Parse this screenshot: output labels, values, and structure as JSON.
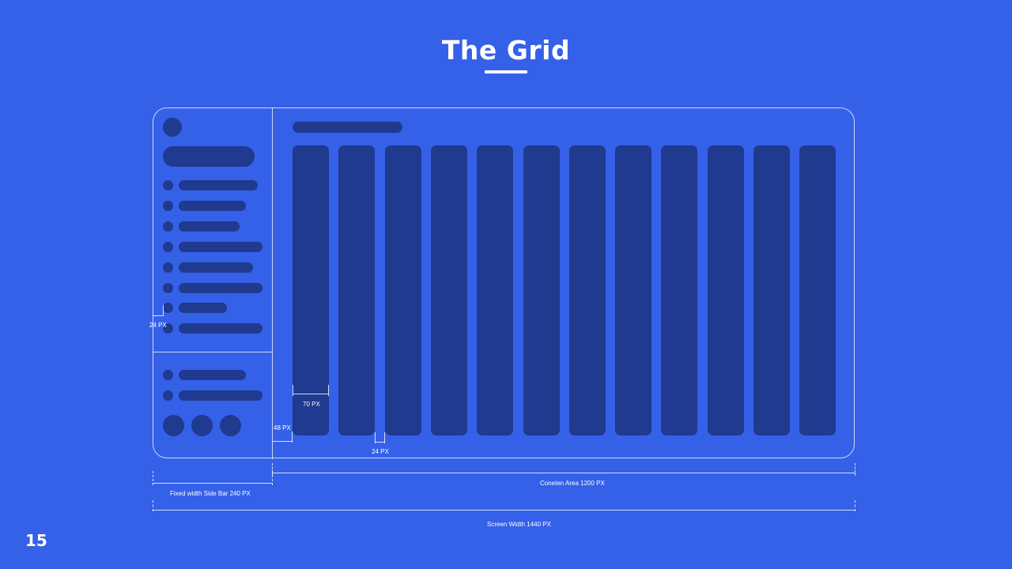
{
  "slide": {
    "title": "The Grid",
    "page_number": "15"
  },
  "annotations": {
    "sidebar_margin": "24 PX",
    "column_width": "70 PX",
    "content_margin": "48 PX",
    "gutter": "24 PX",
    "sidebar_width": "Fixed width Side Bar 240 PX",
    "content_width": "Coneten Area 1200 PX",
    "screen_width": "Screen Width 1440 PX"
  },
  "grid": {
    "columns": 12,
    "sidebar_nav_items": 8,
    "sidebar_footer_items": 2,
    "sidebar_footer_icons": 3
  },
  "colors": {
    "background": "#3560E8",
    "placeholder": "#1F3A8E",
    "line": "#FFFFFF"
  }
}
